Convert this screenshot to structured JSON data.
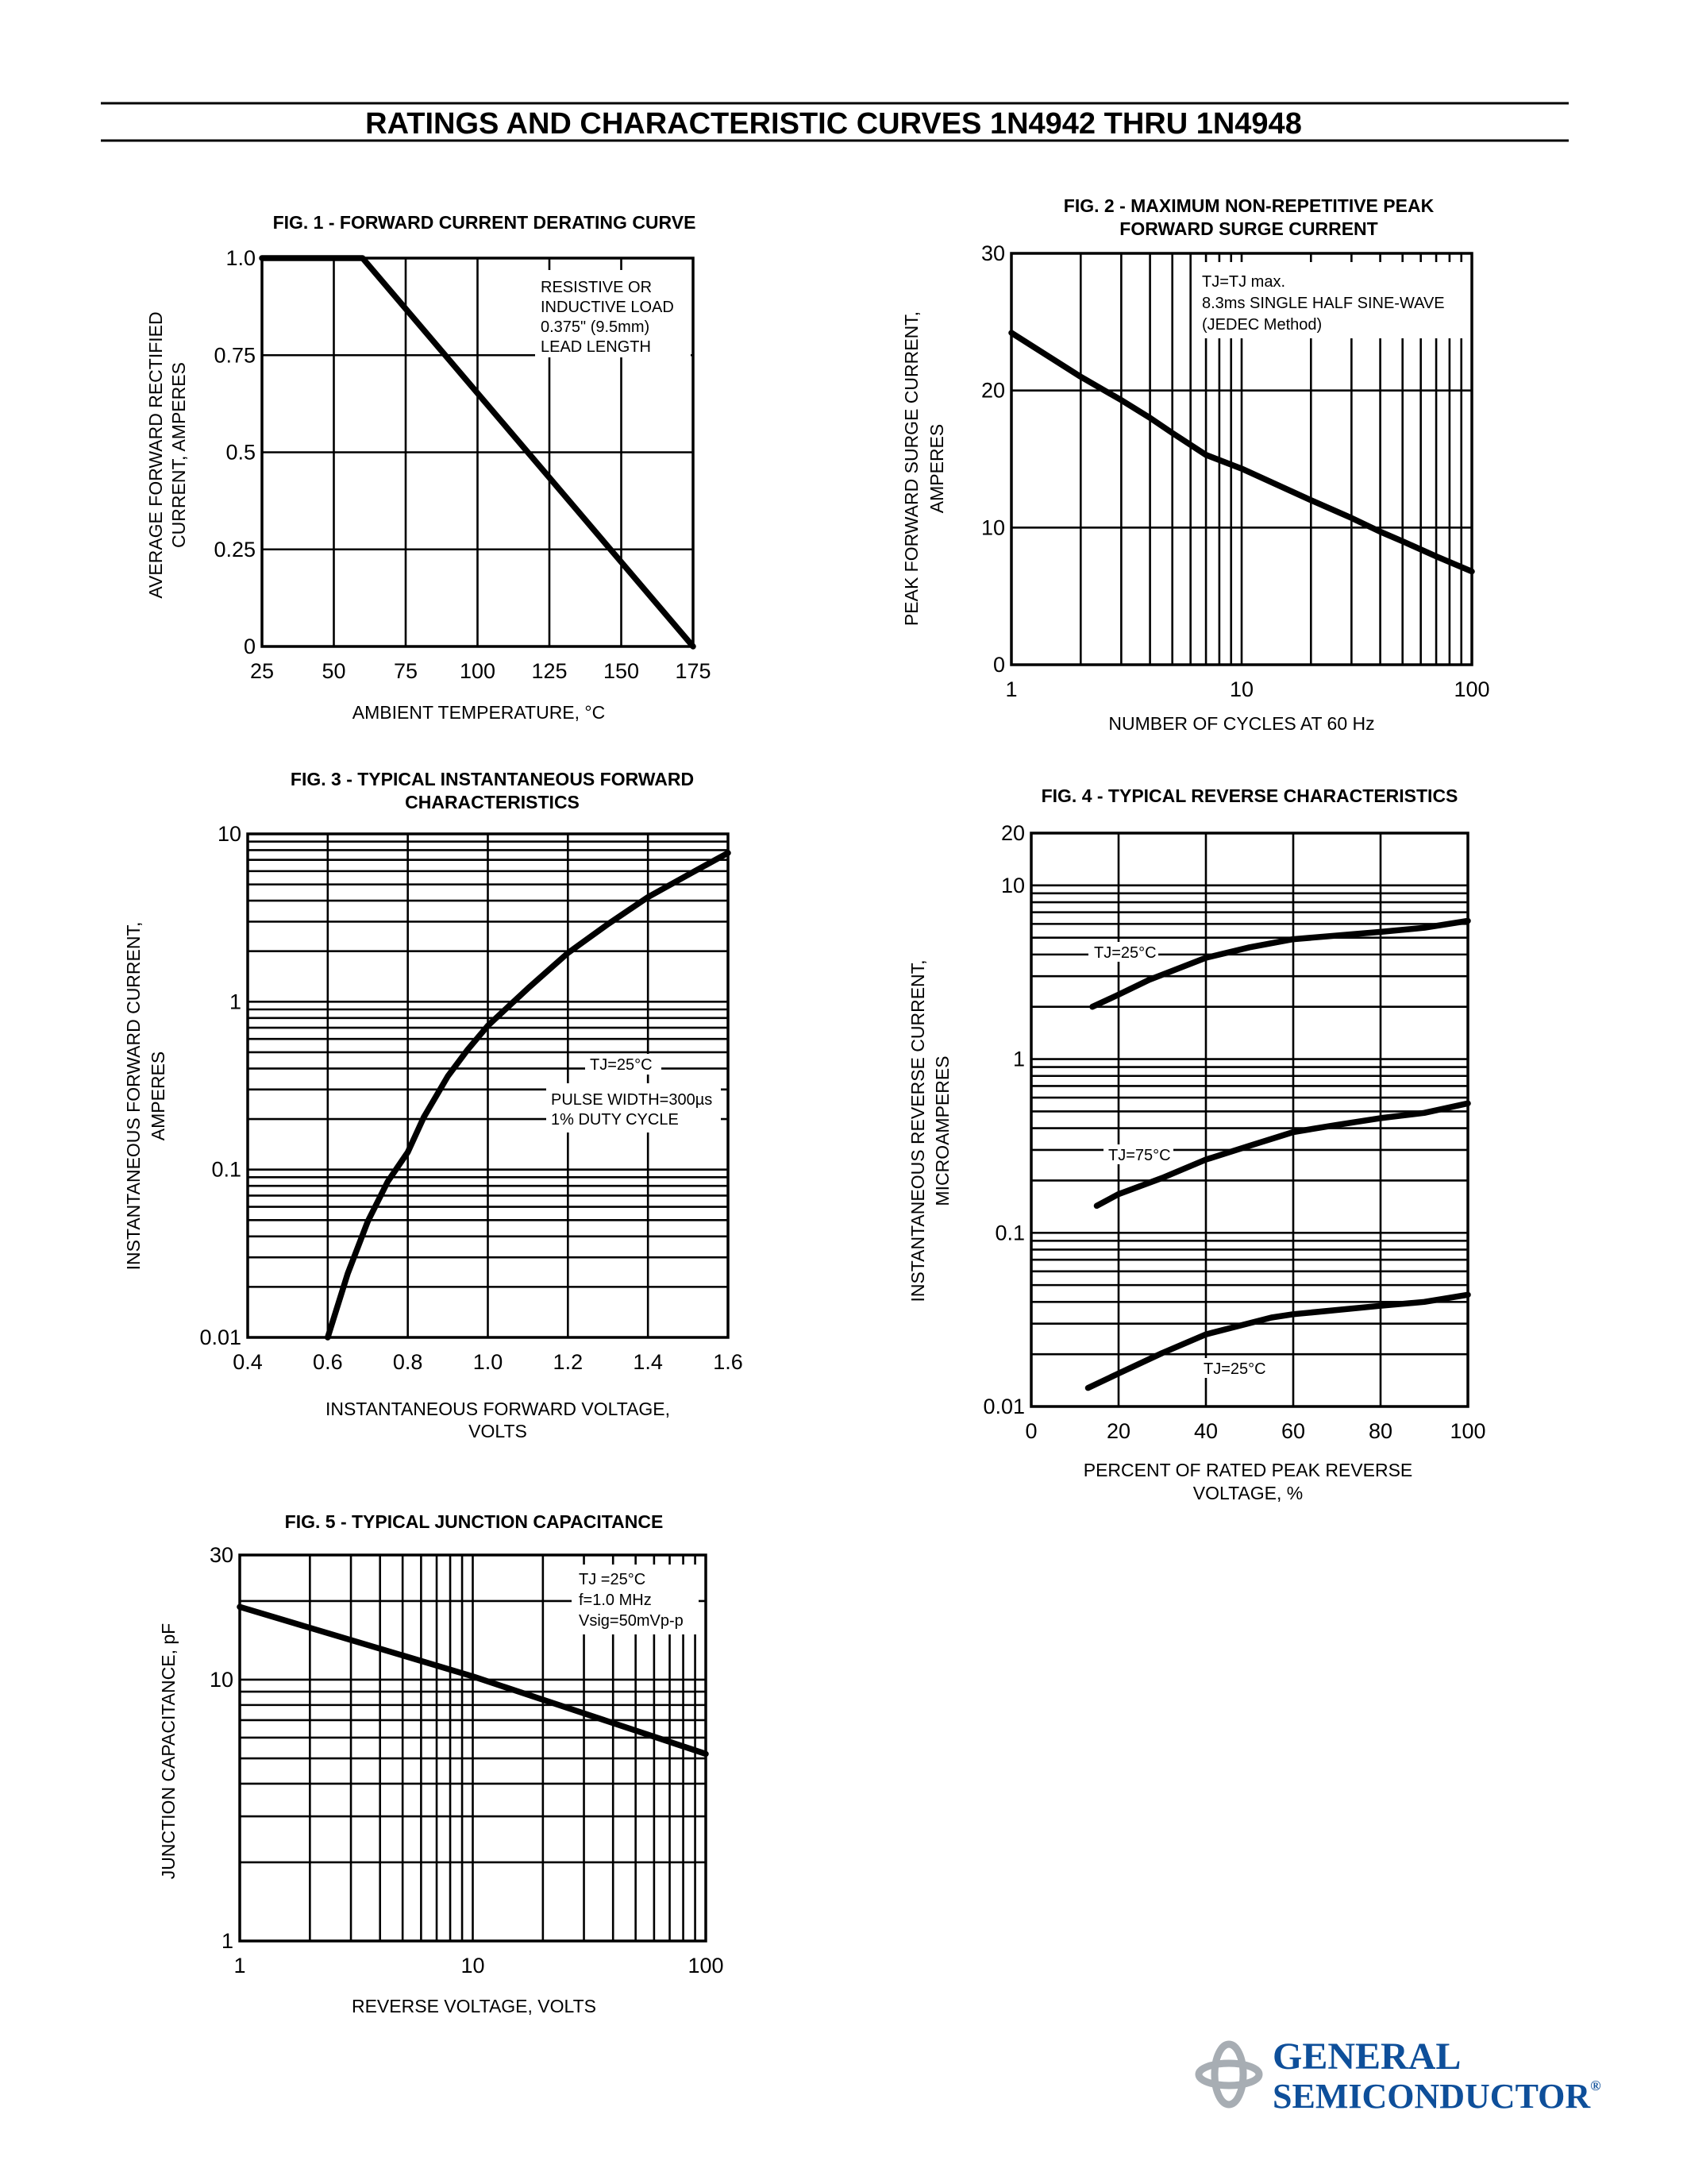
{
  "header": {
    "title": "RATINGS AND CHARACTERISTIC CURVES 1N4942 THRU 1N4948"
  },
  "logo": {
    "line1": "GENERAL",
    "line2": "SEMICONDUCTOR",
    "registered": "®",
    "text_color": "#0e4f9a",
    "mark_color": "#a7adb3"
  },
  "chart_data": [
    {
      "type": "line",
      "title": [
        "FIG. 1 - FORWARD CURRENT DERATING CURVE"
      ],
      "xlabel": [
        "AMBIENT TEMPERATURE, °C"
      ],
      "ylabel": [
        "AVERAGE FORWARD RECTIFIED",
        "CURRENT, AMPERES"
      ],
      "xscale": "linear",
      "yscale": "linear",
      "xlim": [
        25,
        175
      ],
      "ylim": [
        0,
        1.0
      ],
      "xticks": [
        25,
        50,
        75,
        100,
        125,
        150,
        175
      ],
      "xtick_labels": [
        "25",
        "50",
        "75",
        "100",
        "125",
        "150",
        "175"
      ],
      "yticks": [
        0,
        0.25,
        0.5,
        0.75,
        1.0
      ],
      "ytick_labels": [
        "0",
        "0.25",
        "0.5",
        "0.75",
        "1.0"
      ],
      "grid": true,
      "series": [
        {
          "x": [
            25,
            60,
            175
          ],
          "y": [
            1.0,
            1.0,
            0
          ]
        }
      ],
      "annotations": [
        {
          "lines": [
            "RESISTIVE OR",
            "INDUCTIVE LOAD",
            "0.375\" (9.5mm)",
            "LEAD LENGTH"
          ]
        }
      ]
    },
    {
      "type": "line",
      "title": [
        "FIG. 2 - MAXIMUM NON-REPETITIVE PEAK",
        "FORWARD SURGE CURRENT"
      ],
      "xlabel": [
        "NUMBER OF CYCLES AT 60 Hz"
      ],
      "ylabel": [
        "PEAK FORWARD SURGE CURRENT,",
        "AMPERES"
      ],
      "xscale": "log",
      "yscale": "linear",
      "xlim": [
        1,
        100
      ],
      "ylim": [
        0,
        30
      ],
      "xticks": [
        1,
        10,
        100
      ],
      "xtick_labels": [
        "1",
        "10",
        "100"
      ],
      "yticks": [
        0,
        10,
        20,
        30
      ],
      "ytick_labels": [
        "0",
        "10",
        "20",
        "30"
      ],
      "grid": true,
      "series": [
        {
          "x": [
            1,
            2,
            3,
            4,
            5,
            7,
            10,
            20,
            30,
            40,
            50,
            70,
            100
          ],
          "y": [
            24.2,
            21.0,
            19.3,
            18.0,
            16.9,
            15.3,
            14.3,
            12.0,
            10.7,
            9.7,
            9.0,
            7.9,
            6.8
          ]
        }
      ],
      "annotations": [
        {
          "lines": [
            "TJ=TJ max.",
            "8.3ms SINGLE HALF SINE-WAVE",
            "(JEDEC Method)"
          ]
        }
      ]
    },
    {
      "type": "line",
      "title": [
        "FIG. 3 - TYPICAL INSTANTANEOUS FORWARD",
        "CHARACTERISTICS"
      ],
      "xlabel": [
        "INSTANTANEOUS FORWARD VOLTAGE,",
        "VOLTS"
      ],
      "ylabel": [
        "INSTANTANEOUS FORWARD CURRENT,",
        "AMPERES"
      ],
      "xscale": "linear",
      "yscale": "log",
      "xlim": [
        0.4,
        1.6
      ],
      "ylim": [
        0.01,
        10
      ],
      "xticks": [
        0.4,
        0.6,
        0.8,
        1.0,
        1.2,
        1.4,
        1.6
      ],
      "xtick_labels": [
        "0.4",
        "0.6",
        "0.8",
        "1.0",
        "1.2",
        "1.4",
        "1.6"
      ],
      "yticks": [
        0.01,
        0.1,
        1,
        10
      ],
      "ytick_labels": [
        "0.01",
        "0.1",
        "1",
        "10"
      ],
      "grid": true,
      "series": [
        {
          "x": [
            0.6,
            0.65,
            0.7,
            0.75,
            0.8,
            0.84,
            0.9,
            0.95,
            1.0,
            1.1,
            1.2,
            1.3,
            1.4,
            1.5,
            1.6
          ],
          "y": [
            0.01,
            0.024,
            0.049,
            0.085,
            0.127,
            0.205,
            0.36,
            0.52,
            0.72,
            1.2,
            1.95,
            2.9,
            4.2,
            5.7,
            7.7
          ]
        }
      ],
      "annotations": [
        {
          "lines": [
            "TJ=25°C"
          ]
        },
        {
          "lines": [
            "PULSE WIDTH=300µs",
            "1% DUTY CYCLE"
          ]
        }
      ]
    },
    {
      "type": "line",
      "title": [
        "FIG. 4 - TYPICAL REVERSE  CHARACTERISTICS"
      ],
      "xlabel": [
        "PERCENT OF RATED PEAK REVERSE",
        "VOLTAGE, %"
      ],
      "ylabel": [
        "INSTANTANEOUS REVERSE CURRENT,",
        "MICROAMPERES"
      ],
      "xscale": "linear",
      "yscale": "log",
      "xlim": [
        0,
        100
      ],
      "ylim": [
        0.01,
        20
      ],
      "xticks": [
        0,
        20,
        40,
        60,
        80,
        100
      ],
      "xtick_labels": [
        "0",
        "20",
        "40",
        "60",
        "80",
        "100"
      ],
      "yticks": [
        0.01,
        0.1,
        1,
        10,
        20
      ],
      "ytick_labels": [
        "0.01",
        "0.1",
        "1",
        "10",
        "20"
      ],
      "grid": true,
      "series": [
        {
          "name": "TJ=25°C",
          "x": [
            14,
            20,
            27,
            40,
            50,
            60,
            80,
            90,
            100
          ],
          "y": [
            2.0,
            2.35,
            2.86,
            3.83,
            4.4,
            4.9,
            5.4,
            5.7,
            6.25
          ]
        },
        {
          "name": "TJ=75°C",
          "x": [
            15,
            20,
            30,
            40,
            50,
            60,
            70,
            80,
            90,
            100
          ],
          "y": [
            0.143,
            0.167,
            0.207,
            0.264,
            0.317,
            0.38,
            0.418,
            0.457,
            0.49,
            0.556
          ]
        },
        {
          "name": "TJ=25°C",
          "x": [
            13,
            20,
            30,
            40,
            55,
            60,
            80,
            90,
            100
          ],
          "y": [
            0.0128,
            0.0155,
            0.0203,
            0.026,
            0.0325,
            0.034,
            0.038,
            0.04,
            0.044
          ]
        }
      ],
      "annotations": [
        {
          "lines": [
            "TJ=25°C"
          ]
        },
        {
          "lines": [
            "TJ=75°C"
          ]
        },
        {
          "lines": [
            "TJ=25°C"
          ]
        }
      ]
    },
    {
      "type": "line",
      "title": [
        "FIG. 5 - TYPICAL JUNCTION CAPACITANCE"
      ],
      "xlabel": [
        "REVERSE VOLTAGE, VOLTS"
      ],
      "ylabel": [
        "JUNCTION CAPACITANCE, pF"
      ],
      "xscale": "log",
      "yscale": "log",
      "xlim": [
        1,
        100
      ],
      "ylim": [
        1,
        30
      ],
      "xticks": [
        1,
        10,
        100
      ],
      "xtick_labels": [
        "1",
        "10",
        "100"
      ],
      "yticks": [
        1,
        10,
        30
      ],
      "ytick_labels": [
        "1",
        "10",
        "30"
      ],
      "grid": true,
      "series": [
        {
          "x": [
            1,
            10,
            100
          ],
          "y": [
            19.0,
            10.3,
            5.2
          ]
        }
      ],
      "annotations": [
        {
          "lines": [
            "TJ =25°C",
            "f=1.0 MHz",
            "Vsig=50mVp-p"
          ]
        }
      ]
    }
  ]
}
